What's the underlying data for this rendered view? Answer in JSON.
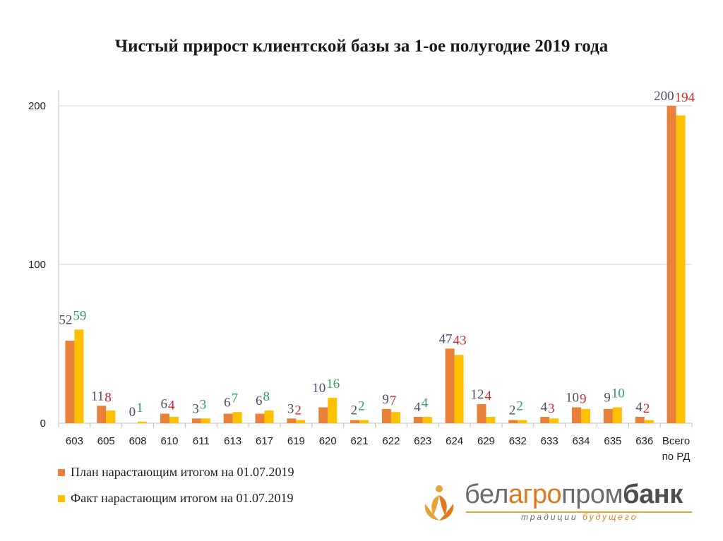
{
  "title": "Чистый прирост клиентской базы за 1-ое полугодие 2019 года",
  "legend": {
    "plan": "План нарастающим итогом на 01.07.2019",
    "fact": "Факт нарастающим итогом на 01.07.2019"
  },
  "brand": {
    "part1": "бел",
    "part2": "агро",
    "part3": "пром",
    "part4": "банк",
    "tagline_part1": "традиции",
    "tagline_part2": "будущего"
  },
  "colors": {
    "plan": "#e8823a",
    "fact": "#ffc000",
    "plan_label": "#4a5068",
    "fact_up": "#2e9e5a",
    "fact_down": "#d0282c",
    "grid": "#cfcfcf"
  },
  "chart_data": {
    "type": "bar",
    "categories": [
      "603",
      "605",
      "608",
      "610",
      "611",
      "613",
      "617",
      "619",
      "620",
      "621",
      "622",
      "623",
      "624",
      "629",
      "632",
      "633",
      "634",
      "635",
      "636",
      "Всего\nпо РД"
    ],
    "series": [
      {
        "name": "План нарастающим итогом на 01.07.2019",
        "values": [
          52,
          11,
          0,
          6,
          3,
          6,
          6,
          3,
          10,
          2,
          9,
          4,
          47,
          12,
          2,
          4,
          10,
          9,
          4,
          200
        ]
      },
      {
        "name": "Факт нарастающим итогом на 01.07.2019",
        "values": [
          59,
          8,
          1,
          4,
          3,
          7,
          8,
          2,
          16,
          2,
          7,
          4,
          43,
          4,
          2,
          3,
          9,
          10,
          2,
          194
        ]
      }
    ],
    "ylim": [
      0,
      210
    ],
    "yticks": [
      0,
      100,
      200
    ],
    "grid": true,
    "legend_position": "bottom-left"
  }
}
